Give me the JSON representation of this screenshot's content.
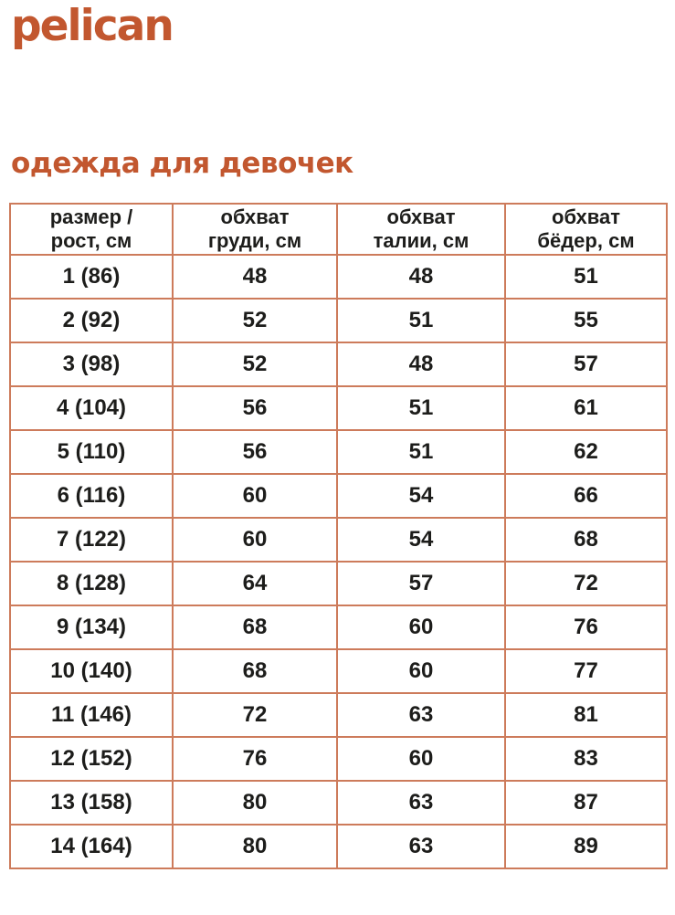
{
  "brand": {
    "logo_text": "pelican"
  },
  "title": "одежда для девочек",
  "colors": {
    "accent": "#c2572f",
    "border": "#cd7b5b",
    "text": "#1d1d1b",
    "background": "#ffffff"
  },
  "chart_data": {
    "type": "table",
    "title": "одежда для девочек",
    "columns": [
      "размер /\nрост, см",
      "обхват\nгруди, см",
      "обхват\nталии, см",
      "обхват\nбёдер, см"
    ],
    "rows": [
      [
        "1 (86)",
        "48",
        "48",
        "51"
      ],
      [
        "2 (92)",
        "52",
        "51",
        "55"
      ],
      [
        "3 (98)",
        "52",
        "48",
        "57"
      ],
      [
        "4 (104)",
        "56",
        "51",
        "61"
      ],
      [
        "5 (110)",
        "56",
        "51",
        "62"
      ],
      [
        "6 (116)",
        "60",
        "54",
        "66"
      ],
      [
        "7 (122)",
        "60",
        "54",
        "68"
      ],
      [
        "8 (128)",
        "64",
        "57",
        "72"
      ],
      [
        "9 (134)",
        "68",
        "60",
        "76"
      ],
      [
        "10 (140)",
        "68",
        "60",
        "77"
      ],
      [
        "11 (146)",
        "72",
        "63",
        "81"
      ],
      [
        "12 (152)",
        "76",
        "60",
        "83"
      ],
      [
        "13 (158)",
        "80",
        "63",
        "87"
      ],
      [
        "14 (164)",
        "80",
        "63",
        "89"
      ]
    ]
  }
}
